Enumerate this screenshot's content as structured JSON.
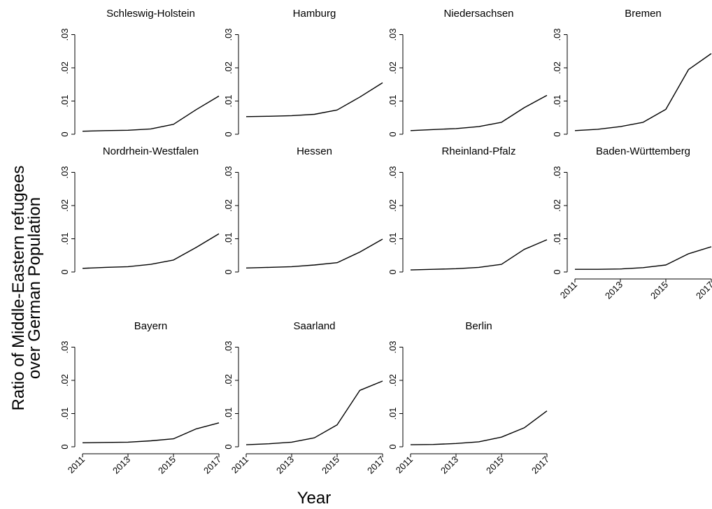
{
  "chart_data": {
    "type": "line",
    "layout": "small multiples, 4 columns",
    "ylabel": "Ratio of Middle-Eastern refugees over German Population",
    "xlabel": "Year",
    "x": [
      2011,
      2012,
      2013,
      2014,
      2015,
      2016,
      2017
    ],
    "xticks": [
      "2011",
      "2013",
      "2015",
      "2017"
    ],
    "yticks": [
      {
        "value": 0,
        "label": "0"
      },
      {
        "value": 0.01,
        "label": ".01"
      },
      {
        "value": 0.02,
        "label": ".02"
      },
      {
        "value": 0.03,
        "label": ".03"
      }
    ],
    "ylim": [
      0,
      0.032
    ],
    "grid": false,
    "color": "#000000",
    "panels": [
      {
        "name": "Schleswig-Holstein",
        "values": [
          0.0009,
          0.0011,
          0.0012,
          0.0016,
          0.003,
          0.0074,
          0.0115
        ]
      },
      {
        "name": "Hamburg",
        "values": [
          0.0053,
          0.0054,
          0.0056,
          0.006,
          0.0073,
          0.0112,
          0.0155
        ]
      },
      {
        "name": "Niedersachsen",
        "values": [
          0.0011,
          0.0014,
          0.0017,
          0.0023,
          0.0036,
          0.008,
          0.0117
        ]
      },
      {
        "name": "Bremen",
        "values": [
          0.0011,
          0.0015,
          0.0023,
          0.0036,
          0.0075,
          0.0195,
          0.0243
        ]
      },
      {
        "name": "Nordrhein-Westfalen",
        "values": [
          0.0011,
          0.0014,
          0.0016,
          0.0023,
          0.0036,
          0.0074,
          0.0115
        ]
      },
      {
        "name": "Hessen",
        "values": [
          0.0012,
          0.0014,
          0.0016,
          0.0021,
          0.0028,
          0.006,
          0.0099
        ]
      },
      {
        "name": "Rheinland-Pfalz",
        "values": [
          0.0006,
          0.0008,
          0.001,
          0.0014,
          0.0023,
          0.0068,
          0.0097
        ]
      },
      {
        "name": "Baden-Württemberg",
        "values": [
          0.0008,
          0.0008,
          0.0009,
          0.0013,
          0.0021,
          0.0055,
          0.0076
        ],
        "show_xaxis": true
      },
      {
        "name": "Bayern",
        "values": [
          0.0012,
          0.0013,
          0.0014,
          0.0018,
          0.0024,
          0.0054,
          0.0072
        ],
        "show_xaxis": true
      },
      {
        "name": "Saarland",
        "values": [
          0.0006,
          0.0009,
          0.0014,
          0.0027,
          0.0066,
          0.017,
          0.0198
        ],
        "show_xaxis": true
      },
      {
        "name": "Berlin",
        "values": [
          0.0006,
          0.0007,
          0.001,
          0.0015,
          0.0029,
          0.0057,
          0.0108
        ],
        "show_xaxis": true
      }
    ]
  }
}
